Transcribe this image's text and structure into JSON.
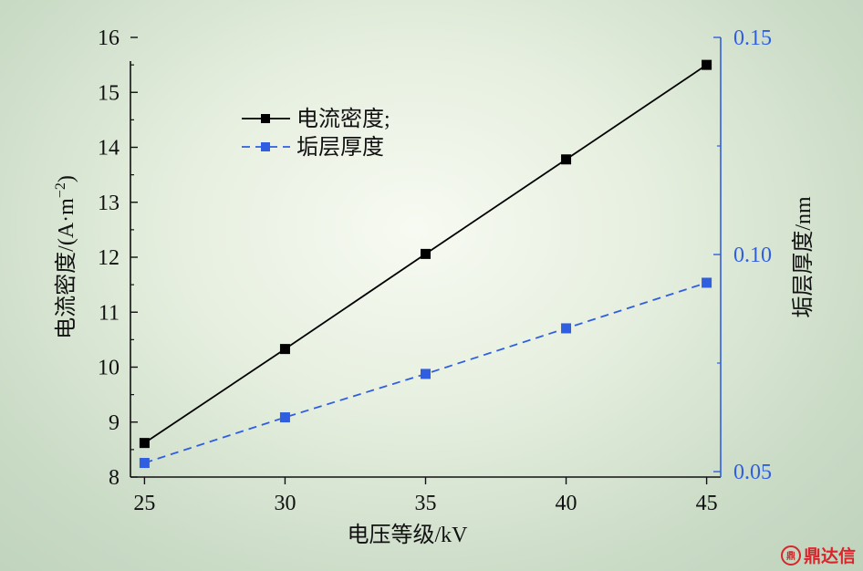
{
  "chart_data": {
    "type": "line",
    "xlabel": "电压等级/kV",
    "ylabel": "电流密度/(A·m",
    "ylabel_sup": "−2",
    "ylabel_tail": ")",
    "y2label": "垢层厚度/nm",
    "x": [
      25,
      30,
      35,
      40,
      45
    ],
    "xticks": [
      "25",
      "30",
      "35",
      "40",
      "45"
    ],
    "xlim": [
      24.5,
      45.5
    ],
    "ylim": [
      8,
      16
    ],
    "yticks": [
      "8",
      "9",
      "10",
      "11",
      "12",
      "13",
      "14",
      "15",
      "16"
    ],
    "y2lim": [
      0.04875,
      0.15
    ],
    "y2ticks": [
      "0.05",
      "0.10",
      "0.15"
    ],
    "series": [
      {
        "name": "电流密度;",
        "axis": "left",
        "color": "#000000",
        "dash": "solid",
        "values": [
          8.62,
          10.33,
          12.06,
          13.78,
          15.5
        ]
      },
      {
        "name": "垢层厚度",
        "axis": "right",
        "color": "#2f5fe0",
        "dash": "dashed",
        "values": [
          0.052,
          0.0625,
          0.0725,
          0.083,
          0.0935
        ]
      }
    ],
    "legend_position": "top-left",
    "grid": false
  },
  "watermark": {
    "icon": "tripod-logo-icon",
    "text": "鼎达信",
    "color": "#d8252c"
  }
}
